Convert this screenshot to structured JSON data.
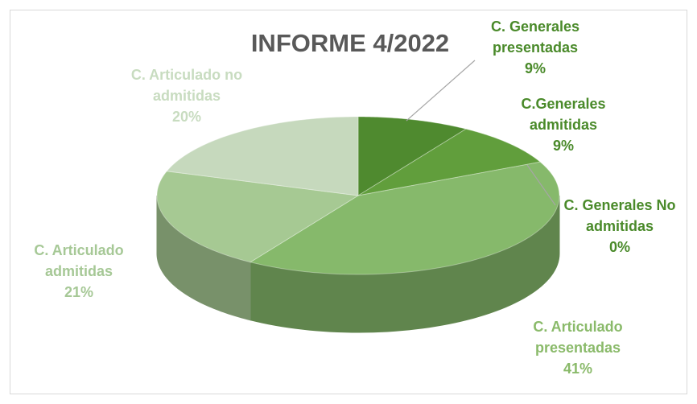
{
  "chart_data": {
    "type": "pie",
    "title": "INFORME 4/2022",
    "categories": [
      "C. Generales presentadas",
      "C.Generales admitidas",
      "C. Generales No admitidas",
      "C. Articulado presentadas",
      "C. Articulado admitidas",
      "C. Articulado no admitidas"
    ],
    "values": [
      9,
      9,
      0,
      41,
      21,
      20
    ],
    "value_labels": [
      "9%",
      "9%",
      "0%",
      "41%",
      "21%",
      "20%"
    ],
    "colors": [
      "#4f8a2f",
      "#619e3c",
      "#74ad52",
      "#86b96b",
      "#a6c993",
      "#c6d9bd"
    ],
    "label_colors": [
      "#4a8a2a",
      "#4a8a2a",
      "#4a8a2a",
      "#8aba6a",
      "#a6c896",
      "#c8dcc0"
    ]
  }
}
